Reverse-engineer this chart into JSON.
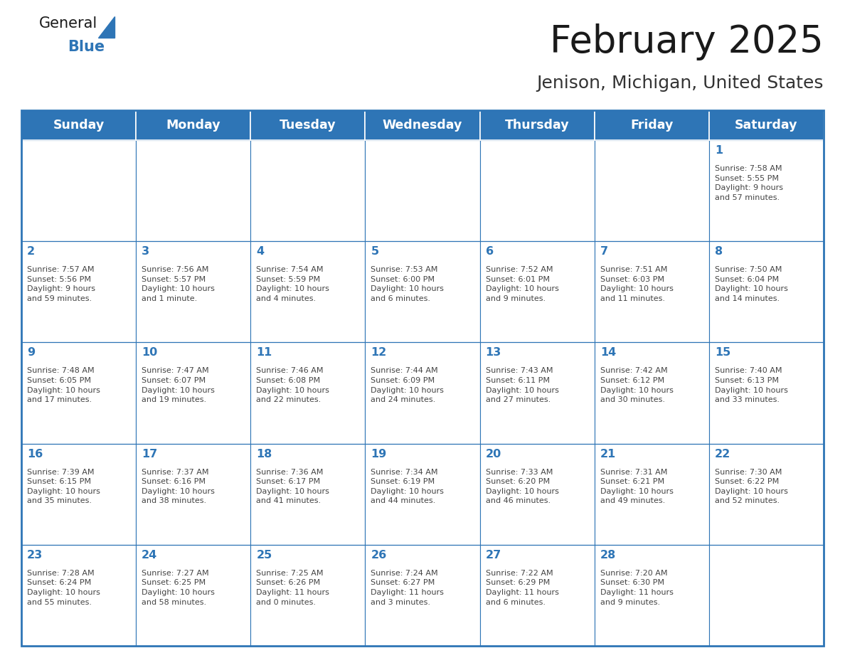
{
  "title": "February 2025",
  "subtitle": "Jenison, Michigan, United States",
  "header_bg": "#2E75B6",
  "header_text_color": "#FFFFFF",
  "cell_bg": "#FFFFFF",
  "border_color": "#2E75B6",
  "title_color": "#1a1a1a",
  "subtitle_color": "#333333",
  "day_number_color": "#2E75B6",
  "cell_text_color": "#444444",
  "days_of_week": [
    "Sunday",
    "Monday",
    "Tuesday",
    "Wednesday",
    "Thursday",
    "Friday",
    "Saturday"
  ],
  "weeks": [
    [
      {
        "day": null,
        "info": null
      },
      {
        "day": null,
        "info": null
      },
      {
        "day": null,
        "info": null
      },
      {
        "day": null,
        "info": null
      },
      {
        "day": null,
        "info": null
      },
      {
        "day": null,
        "info": null
      },
      {
        "day": 1,
        "info": "Sunrise: 7:58 AM\nSunset: 5:55 PM\nDaylight: 9 hours\nand 57 minutes."
      }
    ],
    [
      {
        "day": 2,
        "info": "Sunrise: 7:57 AM\nSunset: 5:56 PM\nDaylight: 9 hours\nand 59 minutes."
      },
      {
        "day": 3,
        "info": "Sunrise: 7:56 AM\nSunset: 5:57 PM\nDaylight: 10 hours\nand 1 minute."
      },
      {
        "day": 4,
        "info": "Sunrise: 7:54 AM\nSunset: 5:59 PM\nDaylight: 10 hours\nand 4 minutes."
      },
      {
        "day": 5,
        "info": "Sunrise: 7:53 AM\nSunset: 6:00 PM\nDaylight: 10 hours\nand 6 minutes."
      },
      {
        "day": 6,
        "info": "Sunrise: 7:52 AM\nSunset: 6:01 PM\nDaylight: 10 hours\nand 9 minutes."
      },
      {
        "day": 7,
        "info": "Sunrise: 7:51 AM\nSunset: 6:03 PM\nDaylight: 10 hours\nand 11 minutes."
      },
      {
        "day": 8,
        "info": "Sunrise: 7:50 AM\nSunset: 6:04 PM\nDaylight: 10 hours\nand 14 minutes."
      }
    ],
    [
      {
        "day": 9,
        "info": "Sunrise: 7:48 AM\nSunset: 6:05 PM\nDaylight: 10 hours\nand 17 minutes."
      },
      {
        "day": 10,
        "info": "Sunrise: 7:47 AM\nSunset: 6:07 PM\nDaylight: 10 hours\nand 19 minutes."
      },
      {
        "day": 11,
        "info": "Sunrise: 7:46 AM\nSunset: 6:08 PM\nDaylight: 10 hours\nand 22 minutes."
      },
      {
        "day": 12,
        "info": "Sunrise: 7:44 AM\nSunset: 6:09 PM\nDaylight: 10 hours\nand 24 minutes."
      },
      {
        "day": 13,
        "info": "Sunrise: 7:43 AM\nSunset: 6:11 PM\nDaylight: 10 hours\nand 27 minutes."
      },
      {
        "day": 14,
        "info": "Sunrise: 7:42 AM\nSunset: 6:12 PM\nDaylight: 10 hours\nand 30 minutes."
      },
      {
        "day": 15,
        "info": "Sunrise: 7:40 AM\nSunset: 6:13 PM\nDaylight: 10 hours\nand 33 minutes."
      }
    ],
    [
      {
        "day": 16,
        "info": "Sunrise: 7:39 AM\nSunset: 6:15 PM\nDaylight: 10 hours\nand 35 minutes."
      },
      {
        "day": 17,
        "info": "Sunrise: 7:37 AM\nSunset: 6:16 PM\nDaylight: 10 hours\nand 38 minutes."
      },
      {
        "day": 18,
        "info": "Sunrise: 7:36 AM\nSunset: 6:17 PM\nDaylight: 10 hours\nand 41 minutes."
      },
      {
        "day": 19,
        "info": "Sunrise: 7:34 AM\nSunset: 6:19 PM\nDaylight: 10 hours\nand 44 minutes."
      },
      {
        "day": 20,
        "info": "Sunrise: 7:33 AM\nSunset: 6:20 PM\nDaylight: 10 hours\nand 46 minutes."
      },
      {
        "day": 21,
        "info": "Sunrise: 7:31 AM\nSunset: 6:21 PM\nDaylight: 10 hours\nand 49 minutes."
      },
      {
        "day": 22,
        "info": "Sunrise: 7:30 AM\nSunset: 6:22 PM\nDaylight: 10 hours\nand 52 minutes."
      }
    ],
    [
      {
        "day": 23,
        "info": "Sunrise: 7:28 AM\nSunset: 6:24 PM\nDaylight: 10 hours\nand 55 minutes."
      },
      {
        "day": 24,
        "info": "Sunrise: 7:27 AM\nSunset: 6:25 PM\nDaylight: 10 hours\nand 58 minutes."
      },
      {
        "day": 25,
        "info": "Sunrise: 7:25 AM\nSunset: 6:26 PM\nDaylight: 11 hours\nand 0 minutes."
      },
      {
        "day": 26,
        "info": "Sunrise: 7:24 AM\nSunset: 6:27 PM\nDaylight: 11 hours\nand 3 minutes."
      },
      {
        "day": 27,
        "info": "Sunrise: 7:22 AM\nSunset: 6:29 PM\nDaylight: 11 hours\nand 6 minutes."
      },
      {
        "day": 28,
        "info": "Sunrise: 7:20 AM\nSunset: 6:30 PM\nDaylight: 11 hours\nand 9 minutes."
      },
      {
        "day": null,
        "info": null
      }
    ]
  ],
  "logo_general_color": "#1a1a1a",
  "logo_blue_color": "#2E75B6",
  "logo_triangle_color": "#2E75B6",
  "fig_width": 11.88,
  "fig_height": 9.18,
  "fig_dpi": 100
}
